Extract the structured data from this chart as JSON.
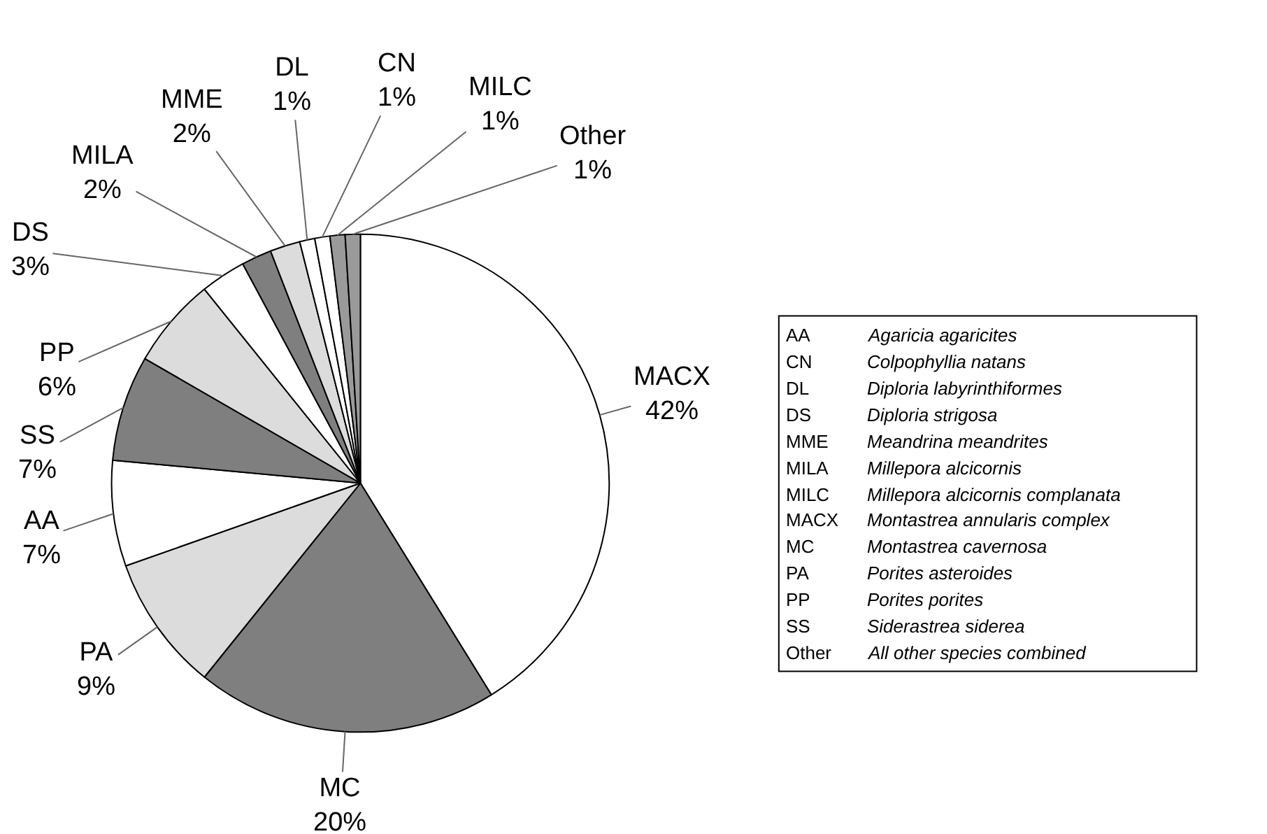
{
  "chart_data": {
    "type": "pie",
    "categories": [
      "MACX",
      "MC",
      "PA",
      "AA",
      "SS",
      "PP",
      "DS",
      "MILA",
      "MME",
      "DL",
      "CN",
      "MILC",
      "Other"
    ],
    "values": [
      42,
      20,
      9,
      7,
      7,
      6,
      3,
      2,
      2,
      1,
      1,
      1,
      1
    ],
    "value_labels": [
      "42%",
      "20%",
      "9%",
      "7%",
      "7%",
      "6%",
      "3%",
      "2%",
      "2%",
      "1%",
      "1%",
      "1%",
      "1%"
    ],
    "colors": [
      "#ffffff",
      "#7f7f7f",
      "#dcdcdc",
      "#ffffff",
      "#7f7f7f",
      "#dcdcdc",
      "#ffffff",
      "#7f7f7f",
      "#dcdcdc",
      "#ffffff",
      "#ffffff",
      "#9a9a9a",
      "#9a9a9a"
    ],
    "legend": false,
    "annotations": [
      "AA Agaricia agaricites",
      "CN Colpophyllia natans",
      "DL Diploria labyrinthiformes",
      "DS Diploria strigosa",
      "MME Meandrina meandrites",
      "MILA Millepora alcicornis",
      "MILC Millepora alcicornis complanata",
      "MACX Montastrea annularis complex",
      "MC Montastrea cavernosa",
      "PA Porites asteroides",
      "PP Porites porites",
      "SS Siderastrea siderea",
      "Other All other species combined"
    ]
  }
}
